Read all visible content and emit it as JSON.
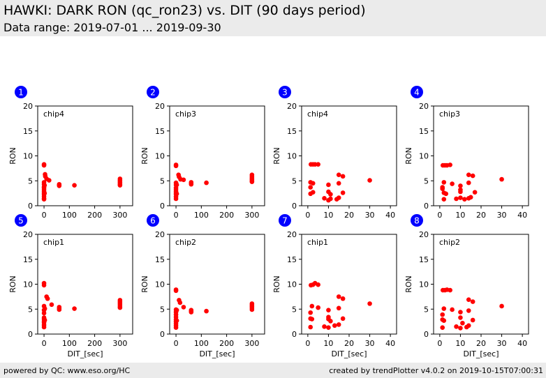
{
  "header": {
    "title": "HAWKI: DARK RON (qc_ron23) vs. DIT (90 days period)",
    "subtitle": "Data range: 2019-07-01 ... 2019-09-30"
  },
  "footer": {
    "left": "powered by QC: www.eso.org/HC",
    "right": "created by trendPlotter v4.0.2 on 2019-10-15T07:00:31"
  },
  "colors": {
    "marker": "#ff0000",
    "badge": "#0000ff",
    "header_bg": "#ebebeb"
  },
  "chart_data": [
    {
      "type": "scatter",
      "badge": "1",
      "label": "chip4",
      "xlabel": "",
      "ylabel": "RON",
      "xlim": [
        -25,
        350
      ],
      "ylim": [
        0,
        20
      ],
      "xticks": [
        0,
        100,
        200,
        300
      ],
      "yticks": [
        0,
        5,
        10,
        15,
        20
      ],
      "points": [
        [
          0,
          8.3
        ],
        [
          0,
          8.1
        ],
        [
          0,
          4.7
        ],
        [
          0,
          4.3
        ],
        [
          0,
          3.8
        ],
        [
          0,
          3.6
        ],
        [
          0,
          3.3
        ],
        [
          0,
          2.9
        ],
        [
          0,
          2.6
        ],
        [
          0,
          2.3
        ],
        [
          0,
          1.9
        ],
        [
          0,
          1.5
        ],
        [
          0,
          1.3
        ],
        [
          2,
          4.1
        ],
        [
          2,
          2.5
        ],
        [
          4,
          6.3
        ],
        [
          5,
          5.9
        ],
        [
          10,
          5.4
        ],
        [
          20,
          5.1
        ],
        [
          60,
          4.3
        ],
        [
          60,
          4.1
        ],
        [
          60,
          4.0
        ],
        [
          120,
          4.1
        ],
        [
          300,
          5.4
        ],
        [
          300,
          5.1
        ],
        [
          300,
          4.9
        ],
        [
          300,
          4.6
        ],
        [
          300,
          4.3
        ],
        [
          300,
          4.1
        ]
      ]
    },
    {
      "type": "scatter",
      "badge": "2",
      "label": "chip3",
      "xlabel": "",
      "ylabel": "RON",
      "xlim": [
        -25,
        350
      ],
      "ylim": [
        0,
        20
      ],
      "xticks": [
        0,
        100,
        200,
        300
      ],
      "yticks": [
        0,
        5,
        10,
        15,
        20
      ],
      "points": [
        [
          0,
          8.2
        ],
        [
          0,
          8.0
        ],
        [
          0,
          4.6
        ],
        [
          0,
          4.2
        ],
        [
          0,
          3.6
        ],
        [
          0,
          3.3
        ],
        [
          0,
          2.9
        ],
        [
          0,
          2.6
        ],
        [
          0,
          2.3
        ],
        [
          0,
          1.8
        ],
        [
          0,
          1.4
        ],
        [
          3,
          4.2
        ],
        [
          3,
          2.4
        ],
        [
          10,
          6.2
        ],
        [
          12,
          5.8
        ],
        [
          18,
          5.3
        ],
        [
          30,
          5.2
        ],
        [
          60,
          4.7
        ],
        [
          60,
          4.5
        ],
        [
          60,
          4.3
        ],
        [
          120,
          4.6
        ],
        [
          300,
          6.2
        ],
        [
          300,
          5.9
        ],
        [
          300,
          5.6
        ],
        [
          300,
          5.3
        ],
        [
          300,
          5.0
        ],
        [
          300,
          4.8
        ]
      ]
    },
    {
      "type": "scatter",
      "badge": "3",
      "label": "chip4",
      "xlabel": "",
      "ylabel": "RON",
      "xlim": [
        -3,
        43
      ],
      "ylim": [
        0,
        20
      ],
      "xticks": [
        0,
        10,
        20,
        30,
        40
      ],
      "yticks": [
        0,
        5,
        10,
        15,
        20
      ],
      "points": [
        [
          1.5,
          8.3
        ],
        [
          2.5,
          8.3
        ],
        [
          3.5,
          8.3
        ],
        [
          5,
          8.3
        ],
        [
          1.3,
          4.7
        ],
        [
          1.3,
          3.7
        ],
        [
          1.3,
          2.4
        ],
        [
          2.5,
          4.5
        ],
        [
          2.5,
          2.7
        ],
        [
          8,
          1.5
        ],
        [
          10,
          4.2
        ],
        [
          10,
          2.8
        ],
        [
          10,
          1.1
        ],
        [
          11,
          2.3
        ],
        [
          11,
          1.4
        ],
        [
          14,
          1.3
        ],
        [
          15,
          6.2
        ],
        [
          15,
          4.5
        ],
        [
          15,
          1.6
        ],
        [
          17,
          5.9
        ],
        [
          17,
          2.6
        ],
        [
          30,
          5.1
        ]
      ]
    },
    {
      "type": "scatter",
      "badge": "4",
      "label": "chip3",
      "xlabel": "",
      "ylabel": "RON",
      "xlim": [
        -3,
        43
      ],
      "ylim": [
        0,
        20
      ],
      "xticks": [
        0,
        10,
        20,
        30,
        40
      ],
      "yticks": [
        0,
        5,
        10,
        15,
        20
      ],
      "points": [
        [
          1.5,
          8.1
        ],
        [
          2.5,
          8.1
        ],
        [
          3.5,
          8.1
        ],
        [
          5,
          8.2
        ],
        [
          1.3,
          3.7
        ],
        [
          1.3,
          3.4
        ],
        [
          2,
          4.7
        ],
        [
          2,
          2.6
        ],
        [
          2,
          1.3
        ],
        [
          3,
          2.4
        ],
        [
          6,
          4.4
        ],
        [
          8,
          1.4
        ],
        [
          10,
          4.0
        ],
        [
          10,
          3.2
        ],
        [
          10,
          2.8
        ],
        [
          10,
          1.6
        ],
        [
          12,
          1.3
        ],
        [
          14,
          6.2
        ],
        [
          14,
          4.6
        ],
        [
          14,
          1.5
        ],
        [
          15,
          1.7
        ],
        [
          16,
          6.0
        ],
        [
          17,
          2.7
        ],
        [
          30,
          5.3
        ]
      ]
    },
    {
      "type": "scatter",
      "badge": "5",
      "label": "chip1",
      "xlabel": "DIT_[sec]",
      "ylabel": "RON",
      "xlim": [
        -25,
        350
      ],
      "ylim": [
        0,
        20
      ],
      "xticks": [
        0,
        100,
        200,
        300
      ],
      "yticks": [
        0,
        5,
        10,
        15,
        20
      ],
      "points": [
        [
          0,
          10.2
        ],
        [
          0,
          9.8
        ],
        [
          0,
          5.6
        ],
        [
          0,
          4.8
        ],
        [
          0,
          4.2
        ],
        [
          0,
          3.3
        ],
        [
          0,
          3.0
        ],
        [
          0,
          2.6
        ],
        [
          0,
          2.3
        ],
        [
          0,
          1.8
        ],
        [
          0,
          1.4
        ],
        [
          3,
          5.1
        ],
        [
          3,
          2.8
        ],
        [
          10,
          7.5
        ],
        [
          14,
          7.1
        ],
        [
          30,
          5.9
        ],
        [
          60,
          5.4
        ],
        [
          60,
          5.1
        ],
        [
          60,
          4.9
        ],
        [
          120,
          5.1
        ],
        [
          300,
          6.8
        ],
        [
          300,
          6.5
        ],
        [
          300,
          6.2
        ],
        [
          300,
          5.9
        ],
        [
          300,
          5.6
        ],
        [
          300,
          5.3
        ]
      ]
    },
    {
      "type": "scatter",
      "badge": "6",
      "label": "chip2",
      "xlabel": "DIT_[sec]",
      "ylabel": "RON",
      "xlim": [
        -25,
        350
      ],
      "ylim": [
        0,
        20
      ],
      "xticks": [
        0,
        100,
        200,
        300
      ],
      "yticks": [
        0,
        5,
        10,
        15,
        20
      ],
      "points": [
        [
          0,
          8.9
        ],
        [
          0,
          8.7
        ],
        [
          0,
          4.9
        ],
        [
          0,
          4.4
        ],
        [
          0,
          3.9
        ],
        [
          0,
          3.4
        ],
        [
          0,
          2.9
        ],
        [
          0,
          2.5
        ],
        [
          0,
          2.1
        ],
        [
          0,
          1.7
        ],
        [
          0,
          1.3
        ],
        [
          3,
          4.8
        ],
        [
          3,
          2.7
        ],
        [
          12,
          6.8
        ],
        [
          16,
          6.3
        ],
        [
          30,
          5.4
        ],
        [
          60,
          4.8
        ],
        [
          60,
          4.6
        ],
        [
          60,
          4.4
        ],
        [
          120,
          4.6
        ],
        [
          300,
          6.1
        ],
        [
          300,
          5.8
        ],
        [
          300,
          5.5
        ],
        [
          300,
          5.2
        ],
        [
          300,
          4.9
        ]
      ]
    },
    {
      "type": "scatter",
      "badge": "7",
      "label": "chip1",
      "xlabel": "DIT_[sec]",
      "ylabel": "RON",
      "xlim": [
        -3,
        43
      ],
      "ylim": [
        0,
        20
      ],
      "xticks": [
        0,
        10,
        20,
        30,
        40
      ],
      "yticks": [
        0,
        5,
        10,
        15,
        20
      ],
      "points": [
        [
          1.5,
          9.8
        ],
        [
          2.5,
          9.9
        ],
        [
          3.5,
          10.2
        ],
        [
          5,
          9.9
        ],
        [
          1.3,
          4.3
        ],
        [
          1.3,
          3.1
        ],
        [
          1.3,
          1.4
        ],
        [
          2,
          5.6
        ],
        [
          2,
          3.0
        ],
        [
          5,
          5.3
        ],
        [
          8,
          1.5
        ],
        [
          10,
          4.8
        ],
        [
          10,
          3.4
        ],
        [
          10,
          3.0
        ],
        [
          10,
          1.3
        ],
        [
          11,
          2.6
        ],
        [
          13,
          1.7
        ],
        [
          15,
          7.5
        ],
        [
          15,
          5.2
        ],
        [
          15,
          1.9
        ],
        [
          17,
          7.1
        ],
        [
          17,
          3.1
        ],
        [
          30,
          6.1
        ]
      ]
    },
    {
      "type": "scatter",
      "badge": "8",
      "label": "chip2",
      "xlabel": "DIT_[sec]",
      "ylabel": "RON",
      "xlim": [
        -3,
        43
      ],
      "ylim": [
        0,
        20
      ],
      "xticks": [
        0,
        10,
        20,
        30,
        40
      ],
      "yticks": [
        0,
        5,
        10,
        15,
        20
      ],
      "points": [
        [
          1.5,
          8.8
        ],
        [
          2.5,
          8.8
        ],
        [
          3.5,
          8.9
        ],
        [
          5,
          8.8
        ],
        [
          1.3,
          3.9
        ],
        [
          1.3,
          2.9
        ],
        [
          1.3,
          1.3
        ],
        [
          2,
          5.1
        ],
        [
          2,
          2.7
        ],
        [
          6,
          4.9
        ],
        [
          8,
          1.5
        ],
        [
          10,
          4.4
        ],
        [
          10,
          3.3
        ],
        [
          10,
          1.2
        ],
        [
          11,
          2.2
        ],
        [
          13,
          1.4
        ],
        [
          14,
          6.9
        ],
        [
          14,
          4.7
        ],
        [
          14,
          1.7
        ],
        [
          16,
          6.5
        ],
        [
          16,
          2.8
        ],
        [
          30,
          5.6
        ]
      ]
    }
  ]
}
